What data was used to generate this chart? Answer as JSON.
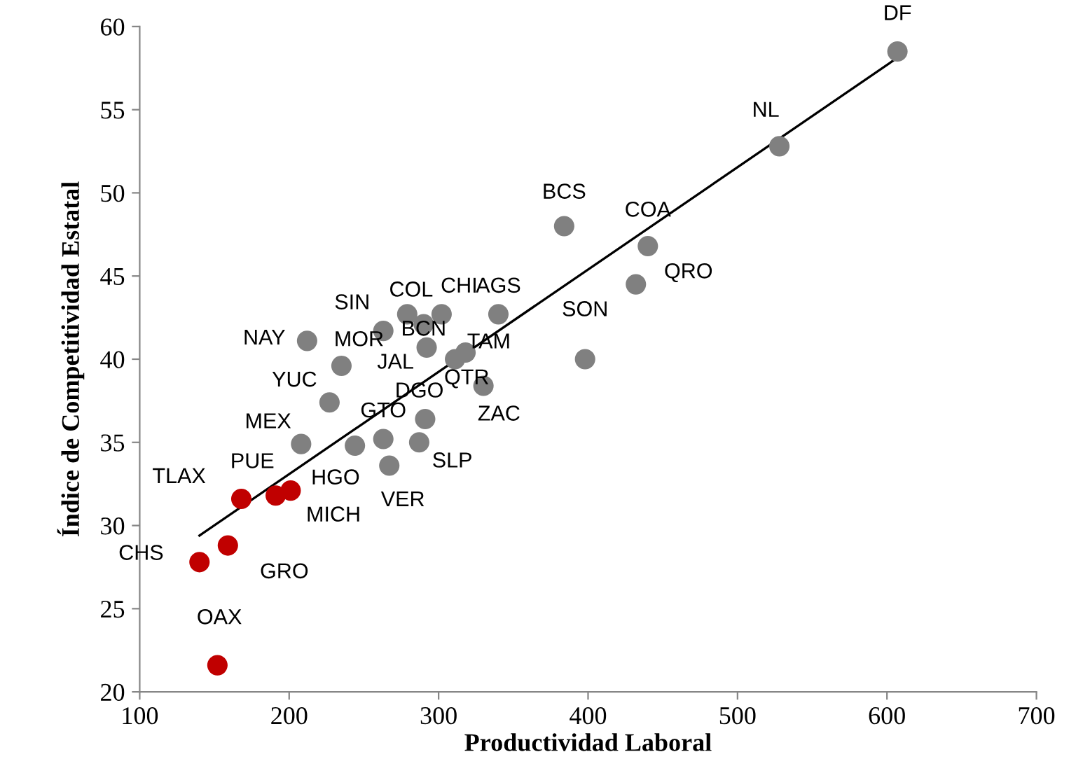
{
  "chart_data": {
    "type": "scatter",
    "xlabel": "Productividad Laboral",
    "ylabel": "Índice de Competitividad Estatal",
    "xlim": [
      100,
      700
    ],
    "xticks": [
      100,
      200,
      300,
      400,
      500,
      600,
      700
    ],
    "ylim": [
      20,
      60
    ],
    "yticks": [
      20,
      25,
      30,
      35,
      40,
      45,
      50,
      55,
      60
    ],
    "grid": false,
    "series": [
      {
        "marker": "circle",
        "x": [
          607,
          528,
          384,
          440,
          432,
          398,
          340,
          302,
          279,
          290,
          263,
          292,
          318,
          311,
          330,
          291,
          212,
          235,
          227,
          208,
          244,
          263,
          287,
          267,
          168,
          191,
          201,
          140,
          159,
          152
        ],
        "values": [
          58.5,
          52.8,
          48.0,
          46.8,
          44.5,
          40.0,
          42.7,
          42.7,
          42.7,
          42.1,
          41.7,
          40.7,
          40.4,
          40.0,
          38.4,
          36.4,
          41.1,
          39.6,
          37.4,
          34.9,
          34.8,
          35.2,
          35.0,
          33.6,
          31.6,
          31.8,
          32.1,
          27.8,
          28.8,
          21.6
        ],
        "colors": [
          "#808080",
          "#808080",
          "#808080",
          "#808080",
          "#808080",
          "#808080",
          "#808080",
          "#808080",
          "#808080",
          "#808080",
          "#808080",
          "#808080",
          "#808080",
          "#808080",
          "#808080",
          "#808080",
          "#808080",
          "#808080",
          "#808080",
          "#808080",
          "#808080",
          "#808080",
          "#808080",
          "#808080",
          "#c00000",
          "#c00000",
          "#c00000",
          "#c00000",
          "#c00000",
          "#c00000"
        ]
      },
      {
        "type": "line",
        "x": [
          140,
          605
        ],
        "values": [
          29.4,
          58.0
        ],
        "color": "#000000",
        "line_style": "solid"
      }
    ],
    "annotations": [
      {
        "text": "DF",
        "x": 607,
        "y": 58.5
      },
      {
        "text": "NL",
        "x": 528,
        "y": 52.8
      },
      {
        "text": "BCS",
        "x": 384,
        "y": 48.0
      },
      {
        "text": "COA",
        "x": 440,
        "y": 46.8
      },
      {
        "text": "QRO",
        "x": 432,
        "y": 44.5
      },
      {
        "text": "SON",
        "x": 398,
        "y": 40.0
      },
      {
        "text": "AGS",
        "x": 340,
        "y": 42.7
      },
      {
        "text": "CHI",
        "x": 302,
        "y": 42.7
      },
      {
        "text": "COL",
        "x": 279,
        "y": 42.7
      },
      {
        "text": "BCN",
        "x": 290,
        "y": 42.1
      },
      {
        "text": "SIN",
        "x": 263,
        "y": 41.7
      },
      {
        "text": "JAL",
        "x": 292,
        "y": 40.7
      },
      {
        "text": "TAM",
        "x": 318,
        "y": 40.4
      },
      {
        "text": "QTR",
        "x": 311,
        "y": 40.0
      },
      {
        "text": "ZAC",
        "x": 330,
        "y": 38.4
      },
      {
        "text": "DGO",
        "x": 291,
        "y": 36.4
      },
      {
        "text": "NAY",
        "x": 212,
        "y": 41.1
      },
      {
        "text": "MOR",
        "x": 235,
        "y": 39.6
      },
      {
        "text": "YUC",
        "x": 227,
        "y": 37.4
      },
      {
        "text": "MEX",
        "x": 208,
        "y": 34.9
      },
      {
        "text": "HGO",
        "x": 244,
        "y": 34.8
      },
      {
        "text": "GTO",
        "x": 263,
        "y": 35.2
      },
      {
        "text": "SLP",
        "x": 287,
        "y": 35.0
      },
      {
        "text": "VER",
        "x": 267,
        "y": 33.6
      },
      {
        "text": "TLAX",
        "x": 168,
        "y": 31.6
      },
      {
        "text": "PUE",
        "x": 191,
        "y": 31.8
      },
      {
        "text": "MICH",
        "x": 201,
        "y": 32.1
      },
      {
        "text": "CHS",
        "x": 140,
        "y": 27.8
      },
      {
        "text": "GRO",
        "x": 159,
        "y": 28.8
      },
      {
        "text": "OAX",
        "x": 152,
        "y": 21.6
      }
    ]
  }
}
